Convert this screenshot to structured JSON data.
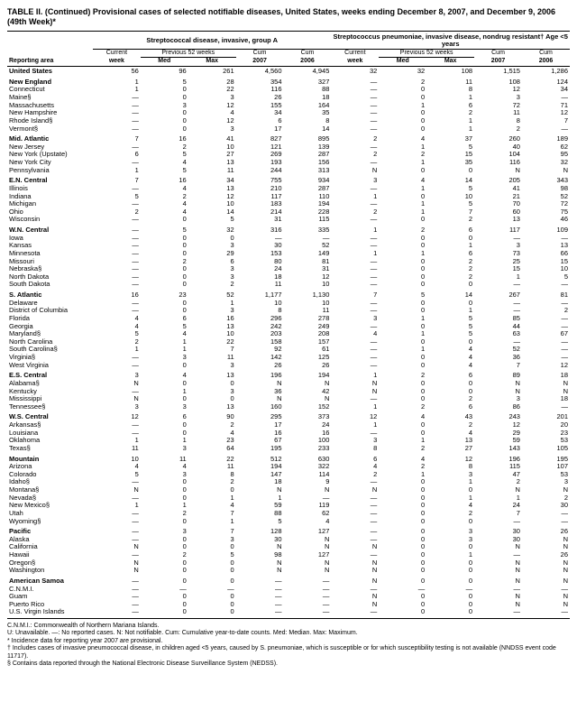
{
  "title": "TABLE II. (Continued) Provisional cases of selected notifiable diseases, United States, weeks ending December 8, 2007, and December 9, 2006 (49th Week)*",
  "disease1": "Streptococcal disease, invasive, group A",
  "disease2": "Streptococcus pneumoniae, invasive disease, nondrug resistant† Age <5 years",
  "col_groups": {
    "current": "Current",
    "previous": "Previous 52 weeks",
    "cum": "Cum"
  },
  "cols": [
    "Reporting area",
    "week",
    "Med",
    "Max",
    "2007",
    "2006",
    "week",
    "Med",
    "Max",
    "2007",
    "2006"
  ],
  "rows": [
    {
      "s": 1,
      "a": "United States",
      "d": [
        "56",
        "96",
        "261",
        "4,560",
        "4,945",
        "32",
        "32",
        "108",
        "1,515",
        "1,286"
      ]
    },
    {
      "s": 1,
      "a": "New England",
      "d": [
        "1",
        "5",
        "28",
        "354",
        "327",
        "—",
        "2",
        "11",
        "108",
        "124"
      ]
    },
    {
      "a": "Connecticut",
      "d": [
        "1",
        "0",
        "22",
        "116",
        "88",
        "—",
        "0",
        "8",
        "12",
        "34"
      ]
    },
    {
      "a": "Maine§",
      "d": [
        "—",
        "0",
        "3",
        "26",
        "18",
        "—",
        "0",
        "1",
        "3",
        "—"
      ]
    },
    {
      "a": "Massachusetts",
      "d": [
        "—",
        "3",
        "12",
        "155",
        "164",
        "—",
        "1",
        "6",
        "72",
        "71"
      ]
    },
    {
      "a": "New Hampshire",
      "d": [
        "—",
        "0",
        "4",
        "34",
        "35",
        "—",
        "0",
        "2",
        "11",
        "12"
      ]
    },
    {
      "a": "Rhode Island§",
      "d": [
        "—",
        "0",
        "12",
        "6",
        "8",
        "—",
        "0",
        "1",
        "8",
        "7"
      ]
    },
    {
      "a": "Vermont§",
      "d": [
        "—",
        "0",
        "3",
        "17",
        "14",
        "—",
        "0",
        "1",
        "2",
        "—"
      ]
    },
    {
      "s": 1,
      "a": "Mid. Atlantic",
      "d": [
        "7",
        "16",
        "41",
        "827",
        "895",
        "2",
        "4",
        "37",
        "260",
        "189"
      ]
    },
    {
      "a": "New Jersey",
      "d": [
        "—",
        "2",
        "10",
        "121",
        "139",
        "—",
        "1",
        "5",
        "40",
        "62"
      ]
    },
    {
      "a": "New York (Upstate)",
      "d": [
        "6",
        "5",
        "27",
        "269",
        "287",
        "2",
        "2",
        "15",
        "104",
        "95"
      ]
    },
    {
      "a": "New York City",
      "d": [
        "—",
        "4",
        "13",
        "193",
        "156",
        "—",
        "1",
        "35",
        "116",
        "32"
      ]
    },
    {
      "a": "Pennsylvania",
      "d": [
        "1",
        "5",
        "11",
        "244",
        "313",
        "N",
        "0",
        "0",
        "N",
        "N"
      ]
    },
    {
      "s": 1,
      "a": "E.N. Central",
      "d": [
        "7",
        "16",
        "34",
        "755",
        "934",
        "3",
        "4",
        "14",
        "205",
        "343"
      ]
    },
    {
      "a": "Illinois",
      "d": [
        "—",
        "4",
        "13",
        "210",
        "287",
        "—",
        "1",
        "5",
        "41",
        "98"
      ]
    },
    {
      "a": "Indiana",
      "d": [
        "5",
        "2",
        "12",
        "117",
        "110",
        "1",
        "0",
        "10",
        "21",
        "52"
      ]
    },
    {
      "a": "Michigan",
      "d": [
        "—",
        "4",
        "10",
        "183",
        "194",
        "—",
        "1",
        "5",
        "70",
        "72"
      ]
    },
    {
      "a": "Ohio",
      "d": [
        "2",
        "4",
        "14",
        "214",
        "228",
        "2",
        "1",
        "7",
        "60",
        "75"
      ]
    },
    {
      "a": "Wisconsin",
      "d": [
        "—",
        "0",
        "5",
        "31",
        "115",
        "—",
        "0",
        "2",
        "13",
        "46"
      ]
    },
    {
      "s": 1,
      "a": "W.N. Central",
      "d": [
        "—",
        "5",
        "32",
        "316",
        "335",
        "1",
        "2",
        "6",
        "117",
        "109"
      ]
    },
    {
      "a": "Iowa",
      "d": [
        "—",
        "0",
        "0",
        "—",
        "—",
        "—",
        "0",
        "0",
        "—",
        "—"
      ]
    },
    {
      "a": "Kansas",
      "d": [
        "—",
        "0",
        "3",
        "30",
        "52",
        "—",
        "0",
        "1",
        "3",
        "13"
      ]
    },
    {
      "a": "Minnesota",
      "d": [
        "—",
        "0",
        "29",
        "153",
        "149",
        "1",
        "1",
        "6",
        "73",
        "66"
      ]
    },
    {
      "a": "Missouri",
      "d": [
        "—",
        "2",
        "6",
        "80",
        "81",
        "—",
        "0",
        "2",
        "25",
        "15"
      ]
    },
    {
      "a": "Nebraska§",
      "d": [
        "—",
        "0",
        "3",
        "24",
        "31",
        "—",
        "0",
        "2",
        "15",
        "10"
      ]
    },
    {
      "a": "North Dakota",
      "d": [
        "—",
        "0",
        "3",
        "18",
        "12",
        "—",
        "0",
        "2",
        "1",
        "5"
      ]
    },
    {
      "a": "South Dakota",
      "d": [
        "—",
        "0",
        "2",
        "11",
        "10",
        "—",
        "0",
        "0",
        "—",
        "—"
      ]
    },
    {
      "s": 1,
      "a": "S. Atlantic",
      "d": [
        "16",
        "23",
        "52",
        "1,177",
        "1,130",
        "7",
        "5",
        "14",
        "267",
        "81"
      ]
    },
    {
      "a": "Delaware",
      "d": [
        "—",
        "0",
        "1",
        "10",
        "10",
        "—",
        "0",
        "0",
        "—",
        "—"
      ]
    },
    {
      "a": "District of Columbia",
      "d": [
        "—",
        "0",
        "3",
        "8",
        "11",
        "—",
        "0",
        "1",
        "—",
        "2"
      ]
    },
    {
      "a": "Florida",
      "d": [
        "4",
        "6",
        "16",
        "296",
        "278",
        "3",
        "1",
        "5",
        "85",
        "—"
      ]
    },
    {
      "a": "Georgia",
      "d": [
        "4",
        "5",
        "13",
        "242",
        "249",
        "—",
        "0",
        "5",
        "44",
        "—"
      ]
    },
    {
      "a": "Maryland§",
      "d": [
        "5",
        "4",
        "10",
        "203",
        "208",
        "4",
        "1",
        "5",
        "63",
        "67"
      ]
    },
    {
      "a": "North Carolina",
      "d": [
        "2",
        "1",
        "22",
        "158",
        "157",
        "—",
        "0",
        "0",
        "—",
        "—"
      ]
    },
    {
      "a": "South Carolina§",
      "d": [
        "1",
        "1",
        "7",
        "92",
        "61",
        "—",
        "1",
        "4",
        "52",
        "—"
      ]
    },
    {
      "a": "Virginia§",
      "d": [
        "—",
        "3",
        "11",
        "142",
        "125",
        "—",
        "0",
        "4",
        "36",
        "—"
      ]
    },
    {
      "a": "West Virginia",
      "d": [
        "—",
        "0",
        "3",
        "26",
        "26",
        "—",
        "0",
        "4",
        "7",
        "12"
      ]
    },
    {
      "s": 1,
      "a": "E.S. Central",
      "d": [
        "3",
        "4",
        "13",
        "196",
        "194",
        "1",
        "2",
        "6",
        "89",
        "18"
      ]
    },
    {
      "a": "Alabama§",
      "d": [
        "N",
        "0",
        "0",
        "N",
        "N",
        "N",
        "0",
        "0",
        "N",
        "N"
      ]
    },
    {
      "a": "Kentucky",
      "d": [
        "—",
        "1",
        "3",
        "36",
        "42",
        "N",
        "0",
        "0",
        "N",
        "N"
      ]
    },
    {
      "a": "Mississippi",
      "d": [
        "N",
        "0",
        "0",
        "N",
        "N",
        "—",
        "0",
        "2",
        "3",
        "18"
      ]
    },
    {
      "a": "Tennessee§",
      "d": [
        "3",
        "3",
        "13",
        "160",
        "152",
        "1",
        "2",
        "6",
        "86",
        "—"
      ]
    },
    {
      "s": 1,
      "a": "W.S. Central",
      "d": [
        "12",
        "6",
        "90",
        "295",
        "373",
        "12",
        "4",
        "43",
        "243",
        "201"
      ]
    },
    {
      "a": "Arkansas§",
      "d": [
        "—",
        "0",
        "2",
        "17",
        "24",
        "1",
        "0",
        "2",
        "12",
        "20"
      ]
    },
    {
      "a": "Louisiana",
      "d": [
        "—",
        "0",
        "4",
        "16",
        "16",
        "—",
        "0",
        "4",
        "29",
        "23"
      ]
    },
    {
      "a": "Oklahoma",
      "d": [
        "1",
        "1",
        "23",
        "67",
        "100",
        "3",
        "1",
        "13",
        "59",
        "53"
      ]
    },
    {
      "a": "Texas§",
      "d": [
        "11",
        "3",
        "64",
        "195",
        "233",
        "8",
        "2",
        "27",
        "143",
        "105"
      ]
    },
    {
      "s": 1,
      "a": "Mountain",
      "d": [
        "10",
        "11",
        "22",
        "512",
        "630",
        "6",
        "4",
        "12",
        "196",
        "195"
      ]
    },
    {
      "a": "Arizona",
      "d": [
        "4",
        "4",
        "11",
        "194",
        "322",
        "4",
        "2",
        "8",
        "115",
        "107"
      ]
    },
    {
      "a": "Colorado",
      "d": [
        "5",
        "3",
        "8",
        "147",
        "114",
        "2",
        "1",
        "3",
        "47",
        "53"
      ]
    },
    {
      "a": "Idaho§",
      "d": [
        "—",
        "0",
        "2",
        "18",
        "9",
        "—",
        "0",
        "1",
        "2",
        "3"
      ]
    },
    {
      "a": "Montana§",
      "d": [
        "N",
        "0",
        "0",
        "N",
        "N",
        "N",
        "0",
        "0",
        "N",
        "N"
      ]
    },
    {
      "a": "Nevada§",
      "d": [
        "—",
        "0",
        "1",
        "1",
        "—",
        "—",
        "0",
        "1",
        "1",
        "2"
      ]
    },
    {
      "a": "New Mexico§",
      "d": [
        "1",
        "1",
        "4",
        "59",
        "119",
        "—",
        "0",
        "4",
        "24",
        "30"
      ]
    },
    {
      "a": "Utah",
      "d": [
        "—",
        "2",
        "7",
        "88",
        "62",
        "—",
        "0",
        "2",
        "7",
        "—"
      ]
    },
    {
      "a": "Wyoming§",
      "d": [
        "—",
        "0",
        "1",
        "5",
        "4",
        "—",
        "0",
        "0",
        "—",
        "—"
      ]
    },
    {
      "s": 1,
      "a": "Pacific",
      "d": [
        "—",
        "3",
        "7",
        "128",
        "127",
        "—",
        "0",
        "3",
        "30",
        "26"
      ]
    },
    {
      "a": "Alaska",
      "d": [
        "—",
        "0",
        "3",
        "30",
        "N",
        "—",
        "0",
        "3",
        "30",
        "N"
      ]
    },
    {
      "a": "California",
      "d": [
        "N",
        "0",
        "0",
        "N",
        "N",
        "N",
        "0",
        "0",
        "N",
        "N"
      ]
    },
    {
      "a": "Hawaii",
      "d": [
        "—",
        "2",
        "5",
        "98",
        "127",
        "—",
        "0",
        "1",
        "—",
        "26"
      ]
    },
    {
      "a": "Oregon§",
      "d": [
        "N",
        "0",
        "0",
        "N",
        "N",
        "N",
        "0",
        "0",
        "N",
        "N"
      ]
    },
    {
      "a": "Washington",
      "d": [
        "N",
        "0",
        "0",
        "N",
        "N",
        "N",
        "0",
        "0",
        "N",
        "N"
      ]
    },
    {
      "s": 1,
      "a": "American Samoa",
      "d": [
        "—",
        "0",
        "0",
        "—",
        "—",
        "N",
        "0",
        "0",
        "N",
        "N"
      ]
    },
    {
      "a": "C.N.M.I.",
      "d": [
        "—",
        "—",
        "—",
        "—",
        "—",
        "—",
        "—",
        "—",
        "—",
        "—"
      ]
    },
    {
      "a": "Guam",
      "d": [
        "—",
        "0",
        "0",
        "—",
        "—",
        "N",
        "0",
        "0",
        "N",
        "N"
      ]
    },
    {
      "a": "Puerto Rico",
      "d": [
        "—",
        "0",
        "0",
        "—",
        "—",
        "N",
        "0",
        "0",
        "N",
        "N"
      ]
    },
    {
      "a": "U.S. Virgin Islands",
      "d": [
        "—",
        "0",
        "0",
        "—",
        "—",
        "—",
        "0",
        "0",
        "—",
        "—"
      ]
    }
  ],
  "footnotes": [
    "C.N.M.I.: Commonwealth of Northern Mariana Islands.",
    "U: Unavailable.    —: No reported cases.    N: Not notifiable.    Cum: Cumulative year-to-date counts.    Med: Median.    Max: Maximum.",
    "* Incidence data for reporting year 2007 are provisional.",
    "† Includes cases of invasive pneumococcal disease, in children aged <5 years, caused by S. pneumoniae, which is susceptible or for which susceptibility testing is not available (NNDSS event code 11717).",
    "§ Contains data reported through the National Electronic Disease Surveillance System (NEDSS)."
  ]
}
